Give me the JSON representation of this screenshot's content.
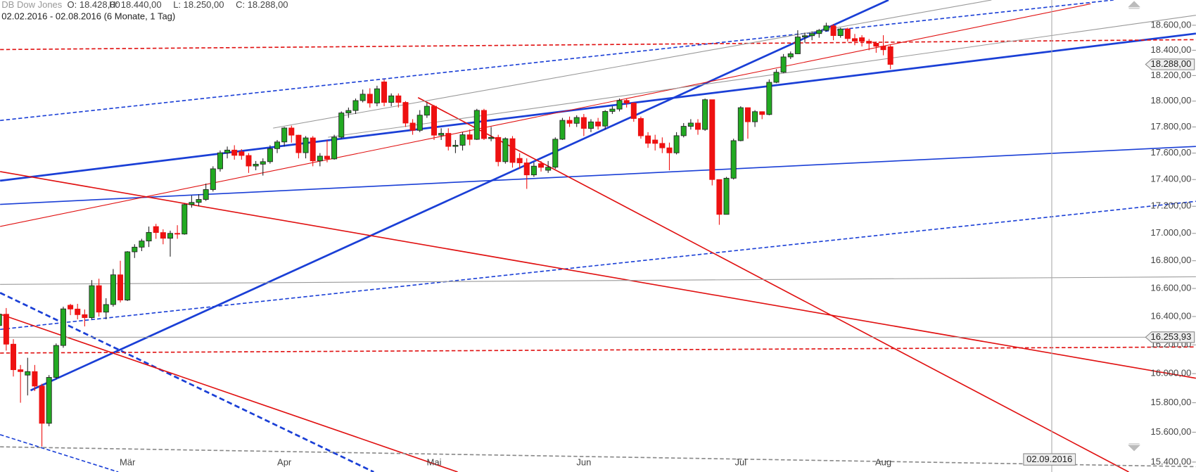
{
  "chart_data": {
    "type": "candlestick",
    "title": "DB Dow Jones",
    "ohlc_labels": [
      "O: 18.428,00",
      "H: 18.440,00",
      "L: 18.250,00",
      "C: 18.288,00"
    ],
    "subtitle": "02.02.2016 - 02.08.2016 (6 Monate, 1 Tag)",
    "categories": [
      null,
      null,
      null,
      null,
      null,
      null,
      null,
      null,
      null,
      null,
      null,
      null,
      null,
      null,
      null,
      null,
      null,
      null,
      null,
      null,
      "Mär",
      null,
      null,
      null,
      null,
      null,
      null,
      null,
      null,
      null,
      null,
      null,
      null,
      null,
      null,
      null,
      null,
      null,
      null,
      null,
      null,
      null,
      "Apr",
      null,
      null,
      null,
      null,
      null,
      null,
      null,
      null,
      null,
      null,
      null,
      null,
      null,
      null,
      null,
      null,
      null,
      null,
      null,
      null,
      "Mai",
      null,
      null,
      null,
      null,
      null,
      null,
      null,
      null,
      null,
      null,
      null,
      null,
      null,
      null,
      null,
      null,
      null,
      null,
      null,
      null,
      "Jun",
      null,
      null,
      null,
      null,
      null,
      null,
      null,
      null,
      null,
      null,
      null,
      null,
      null,
      null,
      null,
      null,
      null,
      null,
      null,
      null,
      null,
      "Jul",
      null,
      null,
      null,
      null,
      null,
      null,
      null,
      null,
      null,
      null,
      null,
      null,
      null,
      null,
      null,
      null,
      null,
      null,
      null,
      "Aug",
      null
    ],
    "open": [
      16450,
      16153,
      16336,
      16416,
      16205,
      16027,
      15990,
      16014,
      15914,
      15660,
      15974,
      16196,
      16480,
      16453,
      16413,
      16392,
      16620,
      16431,
      16485,
      16698,
      16517,
      16865,
      16899,
      16944,
      17050,
      17006,
      16964,
      17000,
      16995,
      17213,
      17229,
      17251,
      17325,
      17481,
      17602,
      17623,
      17610,
      17582,
      17502,
      17516,
      17535,
      17634,
      17685,
      17792,
      17737,
      17603,
      17716,
      17541,
      17577,
      17556,
      17722,
      17908,
      17927,
      18004,
      18054,
      17985,
      18150,
      17990,
      18041,
      17990,
      17830,
      17774,
      17891,
      17960,
      17737,
      17751,
      17651,
      17660,
      17740,
      17705,
      17928,
      17711,
      17720,
      17535,
      17710,
      17560,
      17526,
      17435,
      17520,
      17470,
      17493,
      17706,
      17851,
      17828,
      17873,
      17789,
      17839,
      17807,
      17920,
      17938,
      18005,
      17985,
      17865,
      17732,
      17700,
      17674,
      17640,
      17602,
      17733,
      17805,
      17830,
      17781,
      18011,
      17400,
      17140,
      17410,
      17695,
      17949,
      17840,
      17918,
      17896,
      18147,
      18226,
      18347,
      18372,
      18506,
      18516,
      18533,
      18559,
      18595,
      18517,
      18570,
      18493,
      18500,
      18472,
      18456,
      18432,
      18428
    ],
    "high": [
      16480,
      16370,
      16450,
      16460,
      16240,
      16060,
      16110,
      16060,
      15930,
      15990,
      16210,
      16470,
      16490,
      16490,
      16450,
      16660,
      16670,
      16530,
      16740,
      16800,
      16870,
      16920,
      16960,
      17050,
      17070,
      17030,
      17020,
      17060,
      17220,
      17280,
      17290,
      17370,
      17500,
      17620,
      17650,
      17660,
      17630,
      17600,
      17540,
      17560,
      17660,
      17700,
      17800,
      17810,
      17740,
      17730,
      17730,
      17600,
      17700,
      17740,
      17920,
      17950,
      18020,
      18090,
      18100,
      18120,
      18170,
      18060,
      18060,
      18000,
      17860,
      17930,
      17990,
      17970,
      17790,
      17790,
      17700,
      17760,
      17780,
      17940,
      17940,
      17800,
      17740,
      17720,
      17730,
      17600,
      17560,
      17530,
      17540,
      17540,
      17720,
      17870,
      17880,
      17890,
      17900,
      17860,
      17870,
      17930,
      17960,
      18020,
      18020,
      17990,
      17880,
      17760,
      17740,
      17720,
      17680,
      17760,
      17830,
      17860,
      17860,
      18020,
      18011,
      17400,
      17420,
      17710,
      17960,
      17950,
      17930,
      17920,
      18170,
      18250,
      18370,
      18390,
      18560,
      18540,
      18550,
      18570,
      18620,
      18610,
      18580,
      18580,
      18530,
      18520,
      18490,
      18470,
      18520,
      18440
    ],
    "low": [
      16110,
      16100,
      16290,
      16160,
      15980,
      15800,
      15850,
      15880,
      15503,
      15640,
      15960,
      16180,
      16410,
      16380,
      16330,
      16380,
      16400,
      16380,
      16470,
      16500,
      16510,
      16820,
      16870,
      16900,
      16960,
      16920,
      16830,
      16960,
      16990,
      17190,
      17200,
      17240,
      17310,
      17460,
      17560,
      17550,
      17550,
      17450,
      17470,
      17430,
      17520,
      17600,
      17650,
      17680,
      17560,
      17560,
      17500,
      17500,
      17530,
      17550,
      17710,
      17870,
      17900,
      17990,
      17950,
      17960,
      17960,
      17960,
      17950,
      17800,
      17740,
      17760,
      17870,
      17700,
      17700,
      17620,
      17600,
      17620,
      17660,
      17700,
      17700,
      17690,
      17500,
      17520,
      17490,
      17480,
      17330,
      17420,
      17460,
      17450,
      17480,
      17700,
      17800,
      17800,
      17730,
      17760,
      17780,
      17780,
      17900,
      17920,
      17950,
      17840,
      17710,
      17640,
      17620,
      17600,
      17470,
      17590,
      17720,
      17780,
      17740,
      17770,
      17356,
      17063,
      17140,
      17400,
      17690,
      17710,
      17800,
      17860,
      17890,
      18140,
      18220,
      18330,
      18370,
      18460,
      18480,
      18500,
      18550,
      18480,
      18500,
      18470,
      18440,
      18430,
      18400,
      18380,
      18360,
      18250
    ],
    "close": [
      16153,
      16336,
      16416,
      16205,
      16027,
      16014,
      16014,
      15914,
      15660,
      15974,
      16196,
      16454,
      16453,
      16413,
      16392,
      16620,
      16431,
      16485,
      16698,
      16517,
      16865,
      16899,
      16944,
      17007,
      17006,
      16964,
      17000,
      16995,
      17213,
      17229,
      17251,
      17325,
      17481,
      17602,
      17623,
      17583,
      17582,
      17502,
      17516,
      17535,
      17634,
      17685,
      17792,
      17737,
      17603,
      17716,
      17541,
      17577,
      17556,
      17722,
      17908,
      17927,
      18004,
      18054,
      17985,
      18096,
      17990,
      18041,
      17990,
      17830,
      17774,
      17891,
      17960,
      17737,
      17751,
      17651,
      17660,
      17740,
      17705,
      17928,
      17711,
      17720,
      17535,
      17710,
      17529,
      17526,
      17435,
      17501,
      17492,
      17493,
      17706,
      17851,
      17828,
      17873,
      17789,
      17839,
      17807,
      17920,
      17938,
      18005,
      17985,
      17865,
      17732,
      17675,
      17674,
      17640,
      17602,
      17733,
      17805,
      17830,
      17781,
      18011,
      17400,
      17140,
      17410,
      17695,
      17949,
      17840,
      17918,
      17896,
      18147,
      18226,
      18347,
      18372,
      18506,
      18516,
      18533,
      18559,
      18595,
      18517,
      18570,
      18493,
      18473,
      18472,
      18456,
      18432,
      18404,
      18288
    ],
    "up_color": "#22aa22",
    "down_color": "#ee1111",
    "ylim": [
      15334,
      18804
    ],
    "log_scale": true,
    "yticks": [
      {
        "value": 15400,
        "label": "15.400,00"
      },
      {
        "value": 15600,
        "label": "15.600,00"
      },
      {
        "value": 15800,
        "label": "15.800,00"
      },
      {
        "value": 16000,
        "label": "16.000,00"
      },
      {
        "value": 16200,
        "label": "16.200,00"
      },
      {
        "value": 16400,
        "label": "16.400,00"
      },
      {
        "value": 16600,
        "label": "16.600,00"
      },
      {
        "value": 16800,
        "label": "16.800,00"
      },
      {
        "value": 17000,
        "label": "17.000,00"
      },
      {
        "value": 17200,
        "label": "17.200,00"
      },
      {
        "value": 17400,
        "label": "17.400,00"
      },
      {
        "value": 17600,
        "label": "17.600,00"
      },
      {
        "value": 17800,
        "label": "17.800,00"
      },
      {
        "value": 18000,
        "label": "18.000,00"
      },
      {
        "value": 18200,
        "label": "18.200,00"
      },
      {
        "value": 18400,
        "label": "18.400,00"
      },
      {
        "value": 18600,
        "label": "18.600,00"
      }
    ],
    "price_markers": [
      {
        "value": 18288,
        "label": "18.288,00"
      },
      {
        "value": 16253.93,
        "label": "16.253,93"
      }
    ],
    "date_marker": "02.09.2016"
  }
}
